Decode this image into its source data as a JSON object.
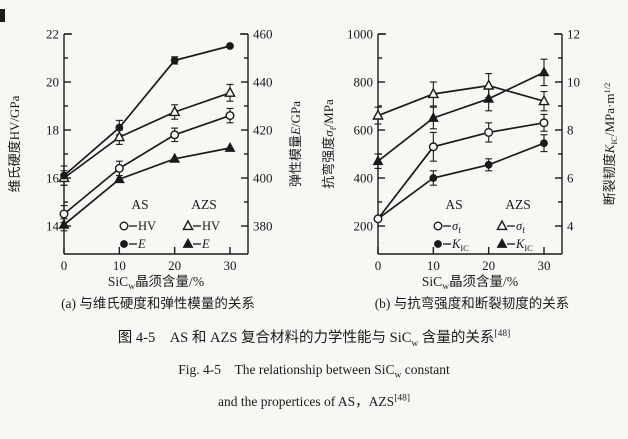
{
  "panel_a": {
    "caption": "(a) 与维氏硬度和弹性模量的关系",
    "left_label": "维氏硬度HV/GPa",
    "right_label_pre": "弹性模量",
    "right_label_var": "E",
    "right_label_post": "/GPa",
    "xlabel_pre": "SiC",
    "xlabel_sub": "w",
    "xlabel_post": "晶须含量/%"
  },
  "panel_b": {
    "caption": "(b) 与抗弯强度和断裂韧度的关系",
    "left_label_pre": "抗弯强度",
    "left_label_var": "σ",
    "left_label_sub": "f",
    "left_label_post": "/MPa",
    "right_label_pre": "断裂韧度",
    "right_label_var": "K",
    "right_label_sub": "IC",
    "right_label_post": "/MPa·m",
    "right_label_sup": "1/2",
    "xlabel_pre": "SiC",
    "xlabel_sub": "w",
    "xlabel_post": "晶须含量/%"
  },
  "captions": {
    "cn_pre": "图 4-5　AS 和 AZS 复合材料的力学性能与 SiC",
    "cn_sub": "w",
    "cn_mid": " 含量的关系",
    "cn_sup": "[48]",
    "en1_pre": "Fig. 4-5　The relationship between SiC",
    "en1_sub": "w",
    "en1_post": " constant",
    "en2_pre": "and the propertices of AS，AZS",
    "en2_sup": "[48]"
  },
  "chart_data": [
    {
      "type": "line",
      "panel": "a",
      "title": "(a) 与维氏硬度和弹性模量的关系",
      "xlabel": "SiCw晶须含量/%",
      "x": [
        0,
        10,
        20,
        30
      ],
      "xticks": [
        0,
        10,
        20,
        30
      ],
      "left_axis": {
        "label": "维氏硬度HV/GPa",
        "ticks": [
          14,
          16,
          18,
          20,
          22
        ]
      },
      "right_axis": {
        "label": "弹性模量E/GPa",
        "ticks": [
          380,
          400,
          420,
          440,
          460
        ]
      },
      "series": [
        {
          "name": "AS HV",
          "axis": "left",
          "marker": "open-circle",
          "values": [
            14.5,
            16.4,
            17.8,
            18.6
          ],
          "errors": [
            0.35,
            0.3,
            0.28,
            0.3
          ]
        },
        {
          "name": "AZS HV",
          "axis": "left",
          "marker": "open-triangle",
          "values": [
            16.0,
            17.7,
            18.75,
            19.55
          ],
          "errors": [
            0.3,
            0.3,
            0.3,
            0.35
          ]
        },
        {
          "name": "AZS E",
          "axis": "right",
          "marker": "filled-triangle",
          "values": [
            380.5,
            399.5,
            408,
            412.5
          ],
          "errors": [
            2.5,
            0,
            0,
            0
          ]
        },
        {
          "name": "AS E",
          "axis": "right",
          "marker": "filled-circle",
          "values": [
            401,
            421,
            449,
            455
          ],
          "errors": [
            4,
            3,
            1.5,
            0
          ]
        }
      ],
      "legend": {
        "groups": [
          {
            "title": "AS",
            "entries": [
              {
                "marker": "open-circle",
                "parts": [
                  {
                    "t": "HV"
                  }
                ]
              },
              {
                "marker": "filled-circle",
                "parts": [
                  {
                    "t": "E",
                    "i": 1
                  }
                ]
              }
            ]
          },
          {
            "title": "AZS",
            "entries": [
              {
                "marker": "open-triangle",
                "parts": [
                  {
                    "t": "HV"
                  }
                ]
              },
              {
                "marker": "filled-triangle",
                "parts": [
                  {
                    "t": "E",
                    "i": 1
                  }
                ]
              }
            ]
          }
        ]
      }
    },
    {
      "type": "line",
      "panel": "b",
      "title": "(b) 与抗弯强度和断裂韧度的关系",
      "xlabel": "SiCw晶须含量/%",
      "x": [
        0,
        10,
        20,
        30
      ],
      "xticks": [
        0,
        10,
        20,
        30
      ],
      "left_axis": {
        "label": "抗弯强度σf/MPa",
        "ticks": [
          200,
          400,
          600,
          800,
          1000
        ]
      },
      "right_axis": {
        "label": "断裂韧度KIC/MPa·m1/2",
        "ticks": [
          4,
          6,
          8,
          10,
          12
        ]
      },
      "series": [
        {
          "name": "AS σf",
          "axis": "left",
          "marker": "open-circle",
          "values": [
            230,
            530,
            590,
            630
          ],
          "errors": [
            0,
            60,
            40,
            35
          ]
        },
        {
          "name": "AZS σf",
          "axis": "left",
          "marker": "open-triangle",
          "values": [
            660,
            750,
            785,
            720
          ],
          "errors": [
            35,
            50,
            50,
            40
          ]
        },
        {
          "name": "AZS KIC",
          "axis": "right",
          "marker": "filled-triangle",
          "values": [
            6.7,
            8.5,
            9.3,
            10.4
          ],
          "errors": [
            0.3,
            0.45,
            0.5,
            0.55
          ]
        },
        {
          "name": "AS KIC",
          "axis": "right",
          "marker": "filled-circle",
          "values": [
            4.3,
            6.0,
            6.55,
            7.45
          ],
          "errors": [
            0,
            0.3,
            0.25,
            0.35
          ],
          "marker_skip": [
            0
          ]
        }
      ],
      "legend": {
        "groups": [
          {
            "title": "AS",
            "entries": [
              {
                "marker": "open-circle",
                "parts": [
                  {
                    "t": "σ",
                    "i": 1
                  },
                  {
                    "t": "f",
                    "sub": 1
                  }
                ]
              },
              {
                "marker": "filled-circle",
                "parts": [
                  {
                    "t": "K",
                    "i": 1
                  },
                  {
                    "t": "IC",
                    "sub": 1
                  }
                ]
              }
            ]
          },
          {
            "title": "AZS",
            "entries": [
              {
                "marker": "open-triangle",
                "parts": [
                  {
                    "t": "σ",
                    "i": 1
                  },
                  {
                    "t": "f",
                    "sub": 1
                  }
                ]
              },
              {
                "marker": "filled-triangle",
                "parts": [
                  {
                    "t": "K",
                    "i": 1
                  },
                  {
                    "t": "IC",
                    "sub": 1
                  }
                ]
              }
            ]
          }
        ]
      }
    }
  ]
}
